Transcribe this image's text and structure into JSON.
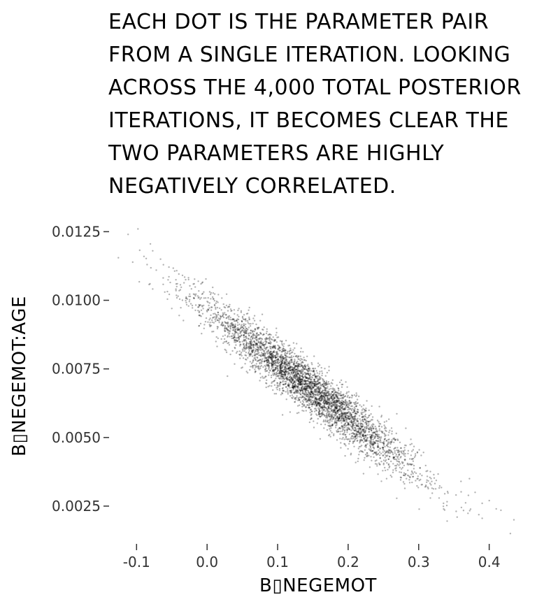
{
  "caption": "Each dot is the parameter pair from a single iteration. Looking across the 4,000 total posterior iterations, it becomes clear the two parameters are highly negatively correlated.",
  "chart_data": {
    "type": "scatter",
    "title": "",
    "xlabel": "B▯NEGEMOT",
    "ylabel": "B▯NEGEMOT:AGE",
    "xlim": [
      -0.135,
      0.44
    ],
    "ylim": [
      0.0012,
      0.0133
    ],
    "x_ticks": [
      -0.1,
      0.0,
      0.1,
      0.2,
      0.3,
      0.4
    ],
    "x_tick_labels": [
      "-0.1",
      "0.0",
      "0.1",
      "0.2",
      "0.3",
      "0.4"
    ],
    "y_ticks": [
      0.0025,
      0.005,
      0.0075,
      0.01,
      0.0125
    ],
    "y_tick_labels": [
      "0.0025",
      "0.0050",
      "0.0075",
      "0.0100",
      "0.0125"
    ],
    "grid": false,
    "legend": "none",
    "point_color": "#000000",
    "point_opacity": 0.3,
    "n_points": 4000,
    "trend": {
      "slope": -0.02,
      "intercept": 0.0097,
      "x_mean": 0.145,
      "x_sd": 0.075,
      "y_sd": 0.00045
    },
    "points": [
      [
        -0.112,
        0.0124
      ],
      [
        -0.098,
        0.0126
      ],
      [
        -0.085,
        0.0113
      ],
      [
        -0.072,
        0.0111
      ],
      [
        -0.081,
        0.0106
      ],
      [
        -0.066,
        0.0115
      ],
      [
        -0.06,
        0.0103
      ],
      [
        -0.05,
        0.0097
      ],
      [
        -0.043,
        0.0105
      ],
      [
        -0.035,
        0.01
      ],
      [
        0.41,
        0.0024
      ],
      [
        0.43,
        0.0015
      ],
      [
        0.435,
        0.002
      ],
      [
        0.39,
        0.0026
      ],
      [
        0.38,
        0.003
      ],
      [
        0.36,
        0.0034
      ],
      [
        0.4,
        0.0027
      ],
      [
        0.372,
        0.0035
      ]
    ]
  }
}
